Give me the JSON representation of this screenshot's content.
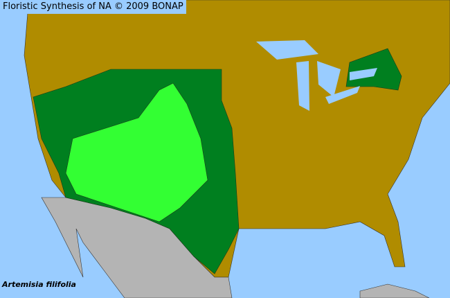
{
  "header": {
    "title": "Floristic Synthesis of NA © 2009 BONAP"
  },
  "map": {
    "species": "Artemisia filifolia",
    "colors": {
      "water": "#99ccff",
      "land_absent": "#b08c00",
      "present_native": "#007f1f",
      "present_county": "#33ff33",
      "outside": "#b4b4b4"
    }
  }
}
